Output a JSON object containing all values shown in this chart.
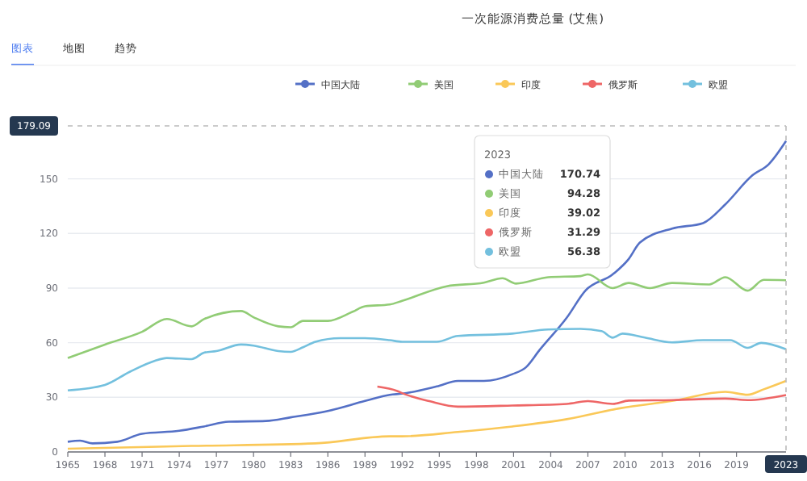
{
  "chart_data": {
    "type": "line",
    "title": "一次能源消费总量 (艾焦)",
    "annotations": [
      "图表",
      "地图",
      "趋势",
      "170.74",
      "94.28",
      "39.02",
      "31.29",
      "56.38"
    ],
    "legend": "top",
    "grid": "y",
    "marker": "none",
    "xlim": [
      1965,
      2023
    ],
    "xticks": [
      1965,
      1968,
      1971,
      1974,
      1977,
      1980,
      1983,
      1986,
      1989,
      1992,
      1995,
      1998,
      2001,
      2004,
      2007,
      2010,
      2013,
      2016,
      2019
    ],
    "ylim": [
      0,
      179.09
    ],
    "yticks": [
      0,
      30,
      60,
      90,
      120,
      150
    ],
    "ref_lines": [
      {
        "axis": "y",
        "value": 179.09,
        "label": "179.09",
        "line_style": "dashed"
      },
      {
        "axis": "x",
        "value": 2023,
        "label": "2023",
        "line_style": "dashed"
      }
    ],
    "series": [
      {
        "name": "中国大陆",
        "color": "#5470c6",
        "x": [
          1965,
          1966,
          1967,
          1969,
          1971,
          1974,
          1976,
          1978,
          1981,
          1983,
          1986,
          1989,
          1991,
          1992,
          1994.8,
          1996.5,
          1998.6,
          2000.9,
          2002,
          2003.1,
          2005.3,
          2006.8,
          2009,
          2010.3,
          2011.2,
          2013.8,
          2016.3,
          2018.1,
          2020.3,
          2021.6,
          2023
        ],
        "values": [
          5.6,
          6.2,
          4.7,
          5.6,
          10,
          11.6,
          14,
          16.6,
          17,
          19,
          22.5,
          28,
          31.4,
          32,
          36,
          39,
          39,
          42.7,
          46.5,
          56,
          73.8,
          88.6,
          97.5,
          106,
          115,
          122.7,
          125.7,
          136,
          152,
          158,
          170.74
        ]
      },
      {
        "name": "美国",
        "color": "#91cc75",
        "x": [
          1965,
          1968,
          1971,
          1973,
          1975,
          1976,
          1979,
          1980,
          1982,
          1983,
          1984,
          1986,
          1988,
          1989,
          1991,
          1992,
          1995.6,
          1998.6,
          2000.1,
          2001.2,
          2003.8,
          2006.4,
          2007,
          2009,
          2010.3,
          2012,
          2013.8,
          2016.8,
          2018.1,
          2019.9,
          2021.2,
          2023
        ],
        "values": [
          51.6,
          59,
          66,
          73,
          69,
          73,
          77.4,
          74,
          69,
          68.5,
          72,
          72,
          77,
          80,
          81,
          83,
          91,
          93,
          95.4,
          92.5,
          96,
          96.6,
          97.5,
          90,
          92.8,
          90,
          92.8,
          92,
          96,
          88.6,
          94.5,
          94.28
        ]
      },
      {
        "name": "印度",
        "color": "#fac858",
        "x": [
          1965,
          1975,
          1985,
          1991,
          1992,
          1996.5,
          2000.9,
          2005.3,
          2009.6,
          2013.8,
          2018.1,
          2019.9,
          2021.2,
          2023
        ],
        "values": [
          1.8,
          3.3,
          4.7,
          8.6,
          8.6,
          11,
          14,
          18,
          24,
          28,
          33,
          31.4,
          34.4,
          39.02
        ]
      },
      {
        "name": "俄罗斯",
        "color": "#ee6666",
        "x": [
          1990,
          1991.6,
          1992,
          1994.2,
          1996.5,
          2000.9,
          2005.3,
          2007,
          2009,
          2010.3,
          2013.8,
          2018.1,
          2019.9,
          2023
        ],
        "values": [
          35.9,
          33.5,
          32.3,
          27.9,
          24.9,
          25.5,
          26.4,
          27.9,
          26.4,
          28.2,
          28.5,
          29.3,
          28.5,
          31.29
        ]
      },
      {
        "name": "欧盟",
        "color": "#73c0de",
        "x": [
          1965,
          1968,
          1970,
          1972,
          1973,
          1975,
          1976,
          1977,
          1979,
          1980,
          1982,
          1983,
          1984,
          1985,
          1987,
          1989,
          1991,
          1992,
          1994.8,
          1996.5,
          2000.9,
          2003.8,
          2006.4,
          2008.1,
          2009,
          2009.8,
          2011.6,
          2013.8,
          2016.3,
          2018.5,
          2019.9,
          2021,
          2023
        ],
        "values": [
          33.8,
          36.8,
          44,
          50,
          51.6,
          51,
          54.5,
          55.4,
          59,
          58.4,
          55.4,
          55,
          57.5,
          60.5,
          62.5,
          62.5,
          61.4,
          60.5,
          60.5,
          63.7,
          65,
          67.3,
          67.6,
          66.4,
          62.8,
          65,
          62.8,
          60.2,
          61.4,
          61.4,
          57.2,
          59.9,
          56.38
        ]
      }
    ]
  }
}
